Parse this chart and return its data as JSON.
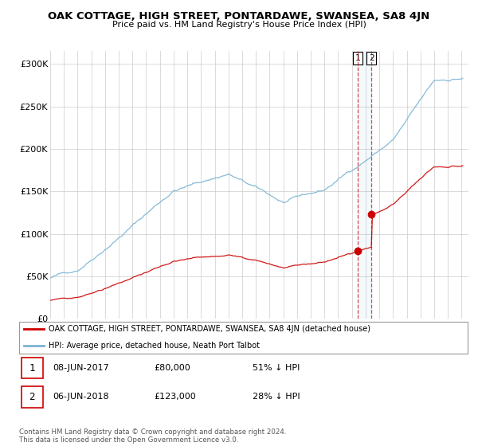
{
  "title": "OAK COTTAGE, HIGH STREET, PONTARDAWE, SWANSEA, SA8 4JN",
  "subtitle": "Price paid vs. HM Land Registry's House Price Index (HPI)",
  "ylabel_ticks": [
    "£0",
    "£50K",
    "£100K",
    "£150K",
    "£200K",
    "£250K",
    "£300K"
  ],
  "ytick_values": [
    0,
    50000,
    100000,
    150000,
    200000,
    250000,
    300000
  ],
  "ylim": [
    0,
    315000
  ],
  "xlim_start": 1995.0,
  "xlim_end": 2025.5,
  "hpi_color": "#7ab3d4",
  "property_color": "#cc0000",
  "sale1_date_num": 2017.44,
  "sale1_price": 80000,
  "sale2_date_num": 2018.43,
  "sale2_price": 123000,
  "legend_property": "OAK COTTAGE, HIGH STREET, PONTARDAWE, SWANSEA, SA8 4JN (detached house)",
  "legend_hpi": "HPI: Average price, detached house, Neath Port Talbot",
  "table_rows": [
    {
      "num": "1",
      "date": "08-JUN-2017",
      "price": "£80,000",
      "pct": "51% ↓ HPI"
    },
    {
      "num": "2",
      "date": "06-JUN-2018",
      "price": "£123,000",
      "pct": "28% ↓ HPI"
    }
  ],
  "footer": "Contains HM Land Registry data © Crown copyright and database right 2024.\nThis data is licensed under the Open Government Licence v3.0.",
  "background_color": "#ffffff"
}
